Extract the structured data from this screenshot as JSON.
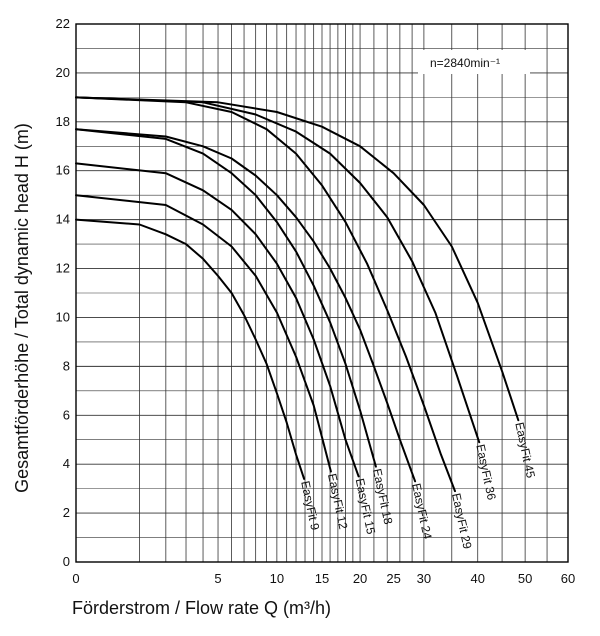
{
  "chart_data": {
    "type": "line",
    "title": "",
    "xlabel": "Förderstrom / Flow rate Q (m³/h)",
    "ylabel": "Gesamtförderhöhe / Total dynamic head H (m)",
    "annotation": "n=2840min⁻¹",
    "x_scale": "square-root",
    "xlim": [
      0,
      60
    ],
    "ylim": [
      0,
      22
    ],
    "x_ticks": [
      "0",
      "5",
      "10",
      "15",
      "20",
      "25",
      "30",
      "40",
      "50",
      "60"
    ],
    "y_ticks": [
      "0",
      "2",
      "4",
      "6",
      "8",
      "10",
      "12",
      "14",
      "16",
      "18",
      "20",
      "22"
    ],
    "grid": true,
    "series": [
      {
        "name": "EasyFit 9",
        "x": [
          0,
          1,
          2,
          3,
          4,
          5,
          6,
          7,
          8,
          9,
          10,
          11,
          12,
          12.9
        ],
        "y": [
          14.0,
          13.8,
          13.4,
          13.0,
          12.4,
          11.7,
          11.0,
          10.1,
          9.1,
          8.1,
          6.9,
          5.7,
          4.4,
          3.4
        ]
      },
      {
        "name": "EasyFit 12",
        "x": [
          0,
          2,
          4,
          6,
          8,
          10,
          12,
          14,
          15,
          16.1
        ],
        "y": [
          15.0,
          14.6,
          13.8,
          12.9,
          11.7,
          10.2,
          8.4,
          6.4,
          5.1,
          3.7
        ]
      },
      {
        "name": "EasyFit 15",
        "x": [
          0,
          2,
          4,
          6,
          8,
          10,
          12,
          14,
          16,
          18,
          19.8
        ],
        "y": [
          16.3,
          15.9,
          15.2,
          14.4,
          13.4,
          12.2,
          10.8,
          9.1,
          7.2,
          5.0,
          3.5
        ]
      },
      {
        "name": "EasyFit 18",
        "x": [
          0,
          2,
          4,
          6,
          8,
          10,
          12,
          14,
          16,
          18,
          20,
          22.3
        ],
        "y": [
          17.7,
          17.3,
          16.7,
          15.9,
          15.0,
          13.9,
          12.7,
          11.3,
          9.8,
          8.1,
          6.2,
          3.9
        ]
      },
      {
        "name": "EasyFit 24",
        "x": [
          0,
          2,
          4,
          6,
          8,
          10,
          12,
          14,
          16,
          18,
          20,
          22,
          24,
          26,
          28.5
        ],
        "y": [
          17.7,
          17.4,
          17.0,
          16.5,
          15.8,
          15.0,
          14.1,
          13.1,
          12.0,
          10.8,
          9.5,
          8.0,
          6.5,
          5.0,
          3.3
        ]
      },
      {
        "name": "EasyFit 29",
        "x": [
          0,
          3,
          6,
          9,
          12,
          15,
          18,
          21,
          24,
          27,
          30,
          33,
          35.6
        ],
        "y": [
          19.0,
          18.8,
          18.4,
          17.7,
          16.7,
          15.4,
          13.9,
          12.2,
          10.3,
          8.4,
          6.4,
          4.4,
          2.9
        ]
      },
      {
        "name": "EasyFit 36",
        "x": [
          0,
          4,
          8,
          12,
          16,
          20,
          24,
          28,
          32,
          36,
          40.3
        ],
        "y": [
          19.0,
          18.8,
          18.3,
          17.6,
          16.7,
          15.5,
          14.1,
          12.3,
          10.2,
          7.6,
          4.9
        ]
      },
      {
        "name": "EasyFit 45",
        "x": [
          0,
          5,
          10,
          15,
          20,
          25,
          30,
          35,
          40,
          45,
          48.5
        ],
        "y": [
          19.0,
          18.8,
          18.4,
          17.8,
          17.0,
          15.9,
          14.6,
          12.9,
          10.6,
          7.8,
          5.8
        ]
      }
    ]
  }
}
